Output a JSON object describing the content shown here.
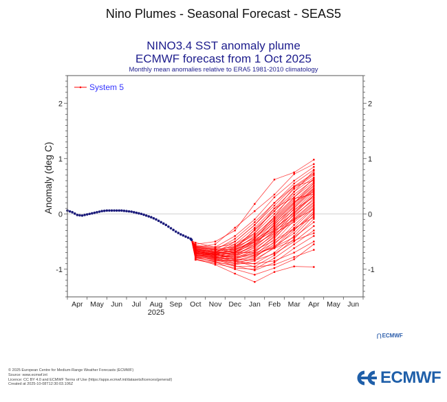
{
  "page": {
    "title": "Nino Plumes - Seasonal Forecast - SEAS5"
  },
  "chart": {
    "title_line1": "NINO3.4 SST anomaly plume",
    "title_line2": "ECMWF forecast from 1 Oct 2025",
    "subtitle": "Monthly mean anomalies relative to ERA5 1981-2010 climatology"
  },
  "footer": {
    "lines": [
      "© 2025 European Centre for Medium-Range Weather Forecasts (ECMWF)",
      "Source: www.ecmwf.int",
      "Licence: CC BY 4.0 and ECMWF Terms of Use (https://apps.ecmwf.int/datasets/licences/general/)",
      "Created at 2025-10-08T12:30:03.106Z"
    ]
  },
  "logo": {
    "small_text": "ECMWF",
    "big_text": "ECMWF",
    "color": "#1f5fa9"
  },
  "chart_data": {
    "type": "line",
    "title": "NINO3.4 SST anomaly plume",
    "subtitle": "ECMWF forecast from 1 Oct 2025",
    "note": "Monthly mean anomalies relative to ERA5 1981-2010 climatology",
    "xlabel": "",
    "ylabel": "Anomaly (deg C)",
    "x_tick_labels": [
      "Apr",
      "May",
      "Jun",
      "Jul",
      "Aug",
      "Sep",
      "Oct",
      "Nov",
      "Dec",
      "Jan",
      "Feb",
      "Mar",
      "Apr",
      "May",
      "Jun"
    ],
    "x_year_label": "2025",
    "x_year_label_under": "Aug",
    "xlim_months": [
      0,
      15
    ],
    "ylim": [
      -1.5,
      2.5
    ],
    "y_ticks": [
      -1,
      0,
      1,
      2
    ],
    "zero_line": true,
    "legend": {
      "position": "top-left",
      "entries": [
        {
          "label": "System 5",
          "color": "#ff0000"
        }
      ]
    },
    "colors": {
      "forecast": "#ff0000",
      "observed": "#1a1a7a",
      "legend_text": "#3333ff"
    },
    "observed": {
      "name": "Observed (ERA5)",
      "points": [
        [
          0.0,
          0.06
        ],
        [
          0.25,
          0.03
        ],
        [
          0.5,
          -0.02
        ],
        [
          0.75,
          -0.03
        ],
        [
          1.0,
          -0.01
        ],
        [
          1.25,
          0.01
        ],
        [
          1.5,
          0.03
        ],
        [
          1.75,
          0.05
        ],
        [
          2.0,
          0.06
        ],
        [
          2.25,
          0.06
        ],
        [
          2.5,
          0.06
        ],
        [
          2.75,
          0.06
        ],
        [
          3.0,
          0.05
        ],
        [
          3.25,
          0.04
        ],
        [
          3.5,
          0.02
        ],
        [
          3.75,
          0.0
        ],
        [
          4.0,
          -0.03
        ],
        [
          4.25,
          -0.06
        ],
        [
          4.5,
          -0.1
        ],
        [
          4.75,
          -0.15
        ],
        [
          5.0,
          -0.2
        ],
        [
          5.25,
          -0.26
        ],
        [
          5.5,
          -0.32
        ],
        [
          5.75,
          -0.37
        ],
        [
          6.0,
          -0.41
        ],
        [
          6.25,
          -0.45
        ],
        [
          6.3,
          -0.47
        ]
      ]
    },
    "forecast": {
      "name": "System 5",
      "start": [
        6.3,
        -0.48
      ],
      "months": [
        "Oct",
        "Nov",
        "Dec",
        "Jan",
        "Feb",
        "Mar",
        "Apr"
      ],
      "x_months": [
        6.5,
        7.5,
        8.5,
        9.5,
        10.5,
        11.5,
        12.5
      ],
      "members": [
        [
          -0.55,
          -0.5,
          -0.3,
          0.18,
          0.62,
          0.75,
          0.98
        ],
        [
          -0.6,
          -0.55,
          -0.25,
          0.05,
          0.35,
          0.72,
          0.9
        ],
        [
          -0.52,
          -0.6,
          -0.4,
          -0.1,
          0.3,
          0.6,
          0.85
        ],
        [
          -0.7,
          -0.65,
          -0.45,
          -0.15,
          0.2,
          0.55,
          0.8
        ],
        [
          -0.58,
          -0.62,
          -0.5,
          -0.2,
          0.15,
          0.5,
          0.74
        ],
        [
          -0.65,
          -0.7,
          -0.55,
          -0.25,
          0.1,
          0.45,
          0.7
        ],
        [
          -0.62,
          -0.68,
          -0.6,
          -0.3,
          0.05,
          0.4,
          0.66
        ],
        [
          -0.72,
          -0.75,
          -0.6,
          -0.35,
          0.0,
          0.35,
          0.62
        ],
        [
          -0.6,
          -0.65,
          -0.65,
          -0.4,
          -0.05,
          0.3,
          0.58
        ],
        [
          -0.68,
          -0.72,
          -0.7,
          -0.45,
          -0.1,
          0.25,
          0.55
        ],
        [
          -0.75,
          -0.78,
          -0.68,
          -0.5,
          -0.15,
          0.2,
          0.52
        ],
        [
          -0.63,
          -0.7,
          -0.75,
          -0.55,
          -0.2,
          0.18,
          0.5
        ],
        [
          -0.7,
          -0.8,
          -0.72,
          -0.5,
          -0.25,
          0.15,
          0.47
        ],
        [
          -0.66,
          -0.74,
          -0.78,
          -0.6,
          -0.3,
          0.1,
          0.44
        ],
        [
          -0.78,
          -0.82,
          -0.8,
          -0.65,
          -0.35,
          0.05,
          0.42
        ],
        [
          -0.64,
          -0.7,
          -0.62,
          -0.42,
          -0.12,
          0.22,
          0.4
        ],
        [
          -0.71,
          -0.76,
          -0.7,
          -0.52,
          -0.28,
          0.02,
          0.38
        ],
        [
          -0.6,
          -0.66,
          -0.58,
          -0.38,
          -0.08,
          0.28,
          0.36
        ],
        [
          -0.74,
          -0.8,
          -0.82,
          -0.7,
          -0.4,
          0.0,
          0.33
        ],
        [
          -0.67,
          -0.72,
          -0.66,
          -0.48,
          -0.22,
          0.08,
          0.3
        ],
        [
          -0.8,
          -0.85,
          -0.85,
          -0.75,
          -0.45,
          -0.05,
          0.28
        ],
        [
          -0.62,
          -0.68,
          -0.72,
          -0.58,
          -0.32,
          -0.02,
          0.25
        ],
        [
          -0.73,
          -0.79,
          -0.76,
          -0.62,
          -0.38,
          -0.08,
          0.22
        ],
        [
          -0.69,
          -0.74,
          -0.8,
          -0.68,
          -0.42,
          -0.1,
          0.2
        ],
        [
          -0.76,
          -0.84,
          -0.9,
          -0.8,
          -0.5,
          -0.12,
          0.17
        ],
        [
          -0.65,
          -0.7,
          -0.68,
          -0.55,
          -0.35,
          -0.15,
          0.15
        ],
        [
          -0.7,
          -0.78,
          -0.86,
          -0.78,
          -0.55,
          -0.2,
          0.12
        ],
        [
          -0.82,
          -0.88,
          -0.92,
          -0.85,
          -0.6,
          -0.25,
          0.1
        ],
        [
          -0.61,
          -0.66,
          -0.64,
          -0.5,
          -0.3,
          -0.1,
          0.08
        ],
        [
          -0.72,
          -0.8,
          -0.88,
          -0.82,
          -0.62,
          -0.3,
          0.05
        ],
        [
          -0.77,
          -0.83,
          -0.84,
          -0.76,
          -0.58,
          -0.35,
          0.02
        ],
        [
          -0.68,
          -0.73,
          -0.78,
          -0.72,
          -0.52,
          -0.28,
          0.0
        ],
        [
          -0.74,
          -0.81,
          -0.9,
          -0.9,
          -0.7,
          -0.4,
          -0.03
        ],
        [
          -0.63,
          -0.69,
          -0.74,
          -0.66,
          -0.48,
          -0.26,
          -0.06
        ],
        [
          -0.79,
          -0.86,
          -0.95,
          -0.95,
          -0.75,
          -0.45,
          -0.09
        ],
        [
          -0.66,
          -0.72,
          -0.8,
          -0.74,
          -0.6,
          -0.42,
          -0.15
        ],
        [
          -0.71,
          -0.77,
          -0.82,
          -0.84,
          -0.72,
          -0.5,
          -0.22
        ],
        [
          -0.83,
          -0.9,
          -0.98,
          -1.0,
          -0.8,
          -0.55,
          -0.3
        ],
        [
          -0.6,
          -0.64,
          -0.7,
          -0.7,
          -0.62,
          -0.48,
          -0.35
        ],
        [
          -0.75,
          -0.82,
          -0.94,
          -1.02,
          -0.88,
          -0.62,
          -0.4
        ],
        [
          -0.69,
          -0.76,
          -0.86,
          -0.9,
          -0.85,
          -0.7,
          -0.5
        ],
        [
          -0.78,
          -0.87,
          -1.0,
          -1.1,
          -0.98,
          -0.82,
          -0.55
        ],
        [
          -0.64,
          -0.71,
          -0.84,
          -0.96,
          -0.92,
          -0.78,
          -0.65
        ],
        [
          -0.81,
          -0.92,
          -1.08,
          -1.23,
          -1.05,
          -0.95,
          -0.96
        ],
        [
          -0.67,
          -0.75,
          -0.7,
          -0.45,
          -0.05,
          0.4,
          0.78
        ],
        [
          -0.73,
          -0.7,
          -0.5,
          -0.2,
          0.2,
          0.5,
          0.6
        ],
        [
          -0.57,
          -0.6,
          -0.55,
          -0.35,
          0.1,
          0.3,
          0.64
        ],
        [
          -0.7,
          -0.74,
          -0.64,
          -0.28,
          0.05,
          0.48,
          0.72
        ],
        [
          -0.65,
          -0.79,
          -0.74,
          -0.58,
          -0.18,
          0.12,
          0.46
        ],
        [
          -0.59,
          -0.63,
          -0.6,
          -0.44,
          -0.16,
          0.2,
          0.56
        ],
        [
          -0.76,
          -0.72,
          -0.66,
          -0.46,
          -0.26,
          0.02,
          0.34
        ]
      ]
    }
  }
}
